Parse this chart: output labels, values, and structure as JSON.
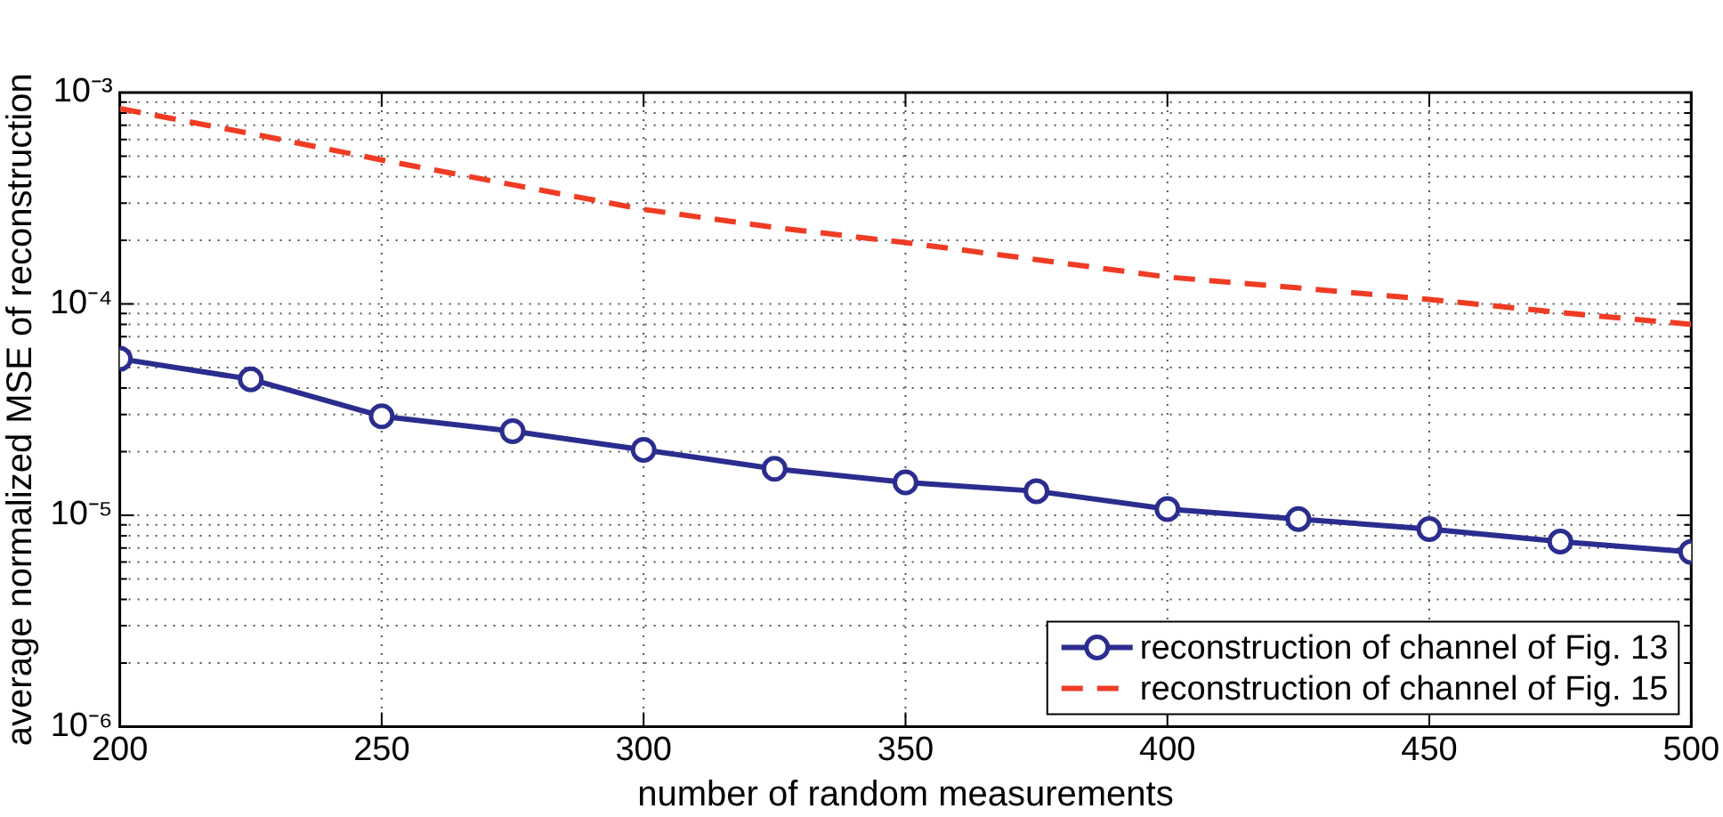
{
  "chart_data": {
    "type": "line",
    "xlabel": "number of random measurements",
    "ylabel": "average normalized MSE of reconstruction",
    "x": [
      200,
      225,
      250,
      275,
      300,
      325,
      350,
      375,
      400,
      425,
      450,
      475,
      500
    ],
    "series": [
      {
        "name": "reconstruction of channel of Fig. 13",
        "color": "#2b2d8e",
        "marker": "circle",
        "line_style": "solid",
        "values": [
          5.5e-05,
          4.4e-05,
          2.94e-05,
          2.5e-05,
          2.04e-05,
          1.66e-05,
          1.43e-05,
          1.3e-05,
          1.07e-05,
          9.6e-06,
          8.6e-06,
          7.5e-06,
          6.7e-06
        ]
      },
      {
        "name": "reconstruction of channel of Fig. 15",
        "color": "#f03c24",
        "marker": "none",
        "line_style": "dashed",
        "values": [
          0.00084,
          0.00064,
          0.00048,
          0.000366,
          0.00028,
          0.00023,
          0.000195,
          0.000162,
          0.000134,
          0.000119,
          0.000105,
          9.1e-05,
          8e-05
        ]
      }
    ],
    "log": "y",
    "grid": true,
    "legend": "bottom right",
    "xlim": [
      200,
      500
    ],
    "xticks": [
      200,
      250,
      300,
      350,
      400,
      450,
      500
    ],
    "ylim": [
      1e-06,
      0.001
    ],
    "yticks": [
      {
        "value": 1e-06,
        "label": "10⁻⁶"
      },
      {
        "value": 2e-06,
        "label": null
      },
      {
        "value": 3e-06,
        "label": null
      },
      {
        "value": 4e-06,
        "label": null
      },
      {
        "value": 5e-06,
        "label": null
      },
      {
        "value": 6e-06,
        "label": null
      },
      {
        "value": 7e-06,
        "label": null
      },
      {
        "value": 8e-06,
        "label": null
      },
      {
        "value": 9e-06,
        "label": null
      },
      {
        "value": 1e-05,
        "label": "10⁻⁵"
      },
      {
        "value": 2e-05,
        "label": null
      },
      {
        "value": 3e-05,
        "label": null
      },
      {
        "value": 4e-05,
        "label": null
      },
      {
        "value": 5e-05,
        "label": null
      },
      {
        "value": 6e-05,
        "label": null
      },
      {
        "value": 7e-05,
        "label": null
      },
      {
        "value": 8e-05,
        "label": null
      },
      {
        "value": 9e-05,
        "label": null
      },
      {
        "value": 0.0001,
        "label": "10⁻⁴"
      },
      {
        "value": 0.0002,
        "label": null
      },
      {
        "value": 0.0003,
        "label": null
      },
      {
        "value": 0.0004,
        "label": null
      },
      {
        "value": 0.0005,
        "label": null
      },
      {
        "value": 0.0006,
        "label": null
      },
      {
        "value": 0.0007,
        "label": null
      },
      {
        "value": 0.0008,
        "label": null
      },
      {
        "value": 0.0009,
        "label": null
      },
      {
        "value": 0.001,
        "label": "10⁻³"
      }
    ]
  }
}
